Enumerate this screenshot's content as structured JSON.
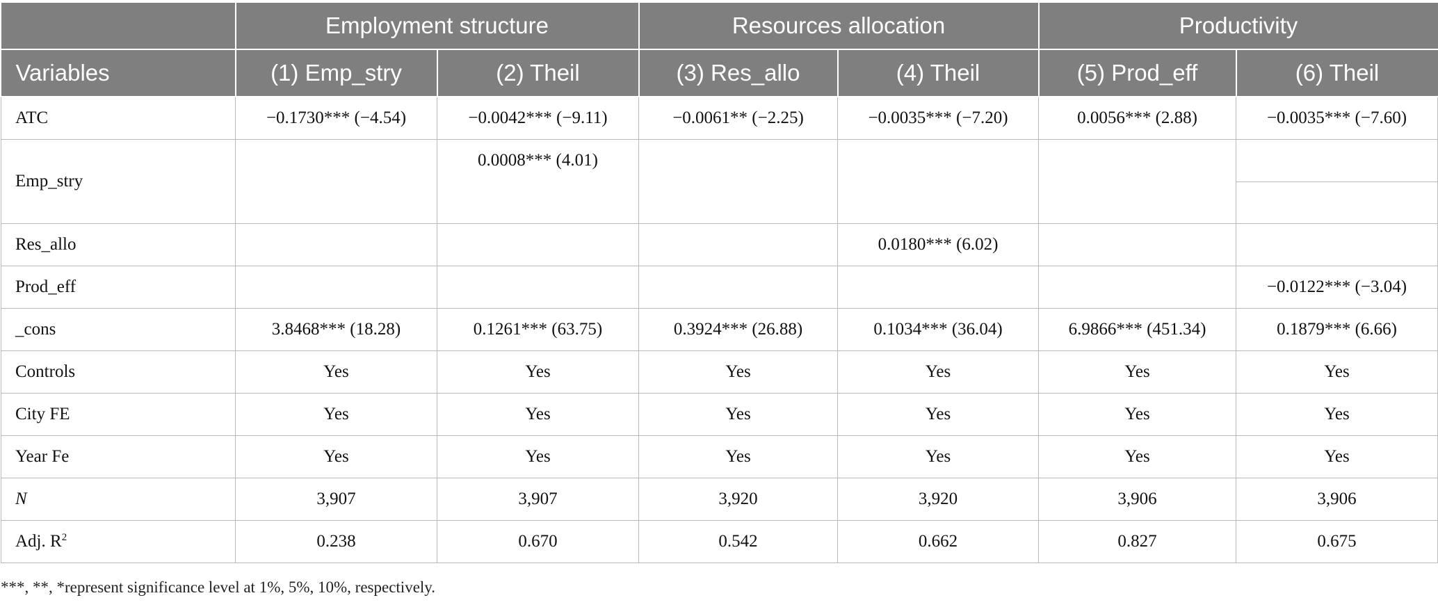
{
  "table": {
    "group_headers": [
      "",
      "Employment structure",
      "Resources allocation",
      "Productivity"
    ],
    "column_headers": [
      "Variables",
      "(1) Emp_stry",
      "(2) Theil",
      "(3) Res_allo",
      "(4) Theil",
      "(5) Prod_eff",
      "(6) Theil"
    ],
    "rows": [
      {
        "label": "ATC",
        "cells": [
          "−0.1730*** (−4.54)",
          "−0.0042*** (−9.11)",
          "−0.0061** (−2.25)",
          "−0.0035*** (−7.20)",
          "0.0056*** (2.88)",
          "−0.0035*** (−7.60)"
        ]
      },
      {
        "label": "Emp_stry",
        "cells": [
          "",
          "0.0008*** (4.01)",
          "",
          "",
          "",
          ""
        ]
      },
      {
        "label": "Res_allo",
        "cells": [
          "",
          "",
          "",
          "0.0180*** (6.02)",
          "",
          ""
        ]
      },
      {
        "label": "Prod_eff",
        "cells": [
          "",
          "",
          "",
          "",
          "",
          "−0.0122*** (−3.04)"
        ]
      },
      {
        "label": "_cons",
        "cells": [
          "3.8468*** (18.28)",
          "0.1261*** (63.75)",
          "0.3924*** (26.88)",
          "0.1034*** (36.04)",
          "6.9866*** (451.34)",
          "0.1879*** (6.66)"
        ]
      },
      {
        "label": "Controls",
        "cells": [
          "Yes",
          "Yes",
          "Yes",
          "Yes",
          "Yes",
          "Yes"
        ]
      },
      {
        "label": "City FE",
        "cells": [
          "Yes",
          "Yes",
          "Yes",
          "Yes",
          "Yes",
          "Yes"
        ]
      },
      {
        "label": "Year Fe",
        "cells": [
          "Yes",
          "Yes",
          "Yes",
          "Yes",
          "Yes",
          "Yes"
        ]
      },
      {
        "label": "N",
        "cells": [
          "3,907",
          "3,907",
          "3,920",
          "3,920",
          "3,906",
          "3,906"
        ]
      },
      {
        "label": "Adj. R",
        "label_sup": "2",
        "cells": [
          "0.238",
          "0.670",
          "0.542",
          "0.662",
          "0.827",
          "0.675"
        ]
      }
    ],
    "note": "***, **, *represent significance level at 1%, 5%, 10%, respectively."
  },
  "colors": {
    "header_bg": "#7f7f7f",
    "header_text": "#ffffff",
    "grid_line": "#b9b9b9"
  }
}
